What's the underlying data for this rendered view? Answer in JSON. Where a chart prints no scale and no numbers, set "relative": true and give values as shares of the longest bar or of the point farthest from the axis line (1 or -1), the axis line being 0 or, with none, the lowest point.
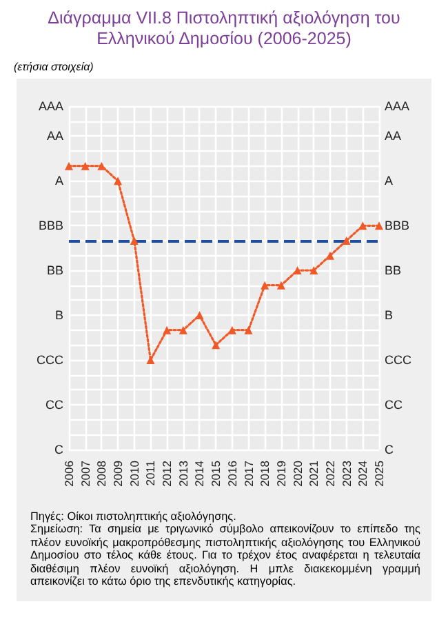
{
  "chart_data": {
    "type": "line",
    "title": "Διάγραμμα VII.8 Πιστοληπτική αξιολόγηση του Ελληνικού Δημοσίου (2006-2025)",
    "subtitle": "(ετήσια στοιχεία)",
    "annotations": [
      "Πηγές: Οίκοι πιστοληπτικής αξιολόγησης.",
      "Σημείωση: Τα σημεία με τριγωνικό σύμβολο απεικονίζουν το επίπεδο της πλέον ευνοϊκής μακροπρόθεσμης πιστοληπτικής αξιολόγησης του Ελληνικού Δημοσίου στο τέλος κάθε έτους. Για το τρέχον έτος αναφέρεται η τελευταία διαθέσιμη πλέον ευνοϊκή αξιολόγηση. Η μπλε διακεκομμένη γραμμή απεικονίζει το κάτω όριο της επενδυτικής κατηγορίας."
    ],
    "categories": [
      "2006",
      "2007",
      "2008",
      "2009",
      "2010",
      "2011",
      "2012",
      "2013",
      "2014",
      "2015",
      "2016",
      "2017",
      "2018",
      "2019",
      "2020",
      "2021",
      "2022",
      "2023",
      "2024",
      "2025"
    ],
    "y_categories": [
      "AAA",
      null,
      "AA",
      null,
      null,
      "A",
      null,
      null,
      "BBB",
      null,
      null,
      "BB",
      null,
      null,
      "B",
      null,
      null,
      "CCC",
      null,
      null,
      "CC",
      null,
      null,
      "C"
    ],
    "y2_categories": [
      "AAA",
      null,
      "AA",
      null,
      null,
      "A",
      null,
      null,
      "BBB",
      null,
      null,
      "BB",
      null,
      null,
      "B",
      null,
      null,
      "CCC",
      null,
      null,
      "CC",
      null,
      null,
      "C"
    ],
    "relative": true,
    "ylim": [
      -0.462,
      1.308
    ],
    "series": [
      {
        "color": "#f05a28",
        "values": [
          1,
          1,
          1,
          0.923,
          0.615,
          0,
          0.154,
          0.154,
          0.231,
          0.077,
          0.154,
          0.154,
          0.385,
          0.385,
          0.462,
          0.462,
          0.538,
          0.615,
          0.692,
          0.692
        ]
      }
    ],
    "ref_lines": [
      {
        "axis": "y",
        "value": 0.615,
        "color": "#1f4e9c",
        "line_style": "dashed"
      }
    ],
    "grid": true,
    "marker": "triangle",
    "line_style": "dotted"
  }
}
